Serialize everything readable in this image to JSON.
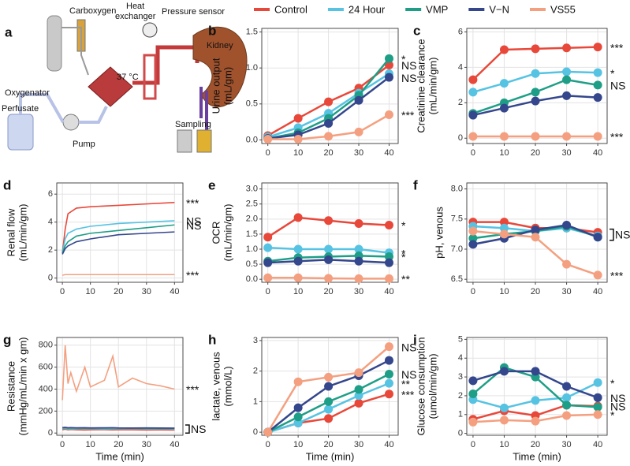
{
  "diagram": {
    "panel": "a",
    "carboxygen": "Carboxygen",
    "heat_exchanger": [
      "Heat",
      "exchanger"
    ],
    "pressure_sensor": "Pressure sensor",
    "kidney": "Kidney",
    "temperature": "37 °C",
    "oxygenator": "Oxygenator",
    "perfusate": "Perfusate",
    "pump": "Pump",
    "sampling": "Sampling"
  },
  "chart_data": [
    {
      "panel": "b",
      "type": "line",
      "markers": true,
      "ylabel": [
        "Urine output",
        "(mL/gm)"
      ],
      "x": [
        0,
        10,
        20,
        30,
        40
      ],
      "xlim": [
        -2,
        43
      ],
      "xticks": [
        0,
        10,
        20,
        30,
        40
      ],
      "ylim": [
        -0.05,
        1.55
      ],
      "yticks": [
        {
          "value": 0,
          "label": "0.0"
        },
        {
          "value": 0.5,
          "label": "0.5"
        },
        {
          "value": 1,
          "label": "1.0"
        },
        {
          "value": 1.5,
          "label": "1.5"
        }
      ],
      "series": [
        {
          "name": "Control",
          "color": "#e8483a",
          "values": [
            0.06,
            0.3,
            0.53,
            0.72,
            1.04
          ],
          "annotation": "NS"
        },
        {
          "name": "24 Hour",
          "color": "#56c3e3",
          "values": [
            0.04,
            0.17,
            0.37,
            0.65,
            0.92
          ]
        },
        {
          "name": "VMP",
          "color": "#1e9e86",
          "values": [
            0.02,
            0.1,
            0.3,
            0.62,
            1.13
          ],
          "annotation": "*"
        },
        {
          "name": "V−N",
          "color": "#34468c",
          "values": [
            0.02,
            0.07,
            0.23,
            0.55,
            0.87
          ],
          "annotation": "NS"
        },
        {
          "name": "VS55",
          "color": "#f4a080",
          "values": [
            0.01,
            0.01,
            0.05,
            0.11,
            0.35
          ],
          "annotation": "***"
        }
      ]
    },
    {
      "panel": "c",
      "type": "line",
      "markers": true,
      "ylabel": [
        "Creatinine clearance",
        "(mL/min/gm)"
      ],
      "x": [
        0,
        10,
        20,
        30,
        40
      ],
      "xlim": [
        -2,
        43
      ],
      "xticks": [
        0,
        10,
        20,
        30,
        40
      ],
      "ylim": [
        -0.3,
        6.2
      ],
      "yticks": [
        0,
        2,
        4,
        6
      ],
      "series": [
        {
          "name": "Control",
          "color": "#e8483a",
          "values": [
            3.3,
            5.0,
            5.05,
            5.1,
            5.15
          ],
          "annotation": "***"
        },
        {
          "name": "24 Hour",
          "color": "#56c3e3",
          "values": [
            2.6,
            3.1,
            3.65,
            3.75,
            3.7
          ],
          "annotation": "*"
        },
        {
          "name": "VMP",
          "color": "#1e9e86",
          "values": [
            1.4,
            2.0,
            2.6,
            3.3,
            3.0
          ],
          "annotation": "NS"
        },
        {
          "name": "V−N",
          "color": "#34468c",
          "values": [
            1.3,
            1.7,
            2.1,
            2.4,
            2.3
          ]
        },
        {
          "name": "VS55",
          "color": "#f4a080",
          "values": [
            0.1,
            0.1,
            0.1,
            0.1,
            0.1
          ],
          "annotation": "***"
        }
      ]
    },
    {
      "panel": "d",
      "type": "line",
      "markers": false,
      "ylabel": [
        "Renal flow",
        "(mL/min/gm)"
      ],
      "x": [
        0,
        1,
        2,
        5,
        10,
        20,
        30,
        40
      ],
      "xlim": [
        -2,
        43
      ],
      "xticks": [
        0,
        10,
        20,
        30,
        40
      ],
      "ylim": [
        -0.3,
        6.8
      ],
      "yticks": [
        0,
        2,
        4,
        6
      ],
      "series": [
        {
          "name": "Control",
          "color": "#e8483a",
          "values": [
            1.8,
            3.5,
            4.6,
            5.0,
            5.1,
            5.2,
            5.3,
            5.4
          ],
          "annotation": "***"
        },
        {
          "name": "24 Hour",
          "color": "#56c3e3",
          "values": [
            1.8,
            2.8,
            3.2,
            3.5,
            3.7,
            3.9,
            4.0,
            4.1
          ],
          "annotation": "NS"
        },
        {
          "name": "VMP",
          "color": "#1e9e86",
          "values": [
            1.8,
            2.3,
            2.6,
            3.0,
            3.2,
            3.4,
            3.6,
            3.8
          ],
          "annotation": "NS"
        },
        {
          "name": "V−N",
          "color": "#34468c",
          "values": [
            1.7,
            2.1,
            2.3,
            2.6,
            2.8,
            3.1,
            3.2,
            3.3
          ]
        },
        {
          "name": "VS55",
          "color": "#f4a080",
          "values": [
            0.2,
            0.25,
            0.25,
            0.25,
            0.25,
            0.25,
            0.25,
            0.25
          ],
          "annotation": "***"
        }
      ]
    },
    {
      "panel": "e",
      "type": "line",
      "markers": true,
      "ylabel": [
        "OCR",
        "(mL/min/gm)"
      ],
      "x": [
        0,
        10,
        20,
        30,
        40
      ],
      "xlim": [
        -2,
        43
      ],
      "xticks": [
        0,
        10,
        20,
        30,
        40
      ],
      "ylim": [
        -0.1,
        3.2
      ],
      "yticks": [
        {
          "value": 0,
          "label": "0.0"
        },
        {
          "value": 0.5,
          "label": "0.5"
        },
        {
          "value": 1,
          "label": "1.0"
        },
        {
          "value": 1.5,
          "label": "1.5"
        },
        {
          "value": 2,
          "label": "2.0"
        },
        {
          "value": 2.5,
          "label": "2.5"
        },
        {
          "value": 3,
          "label": "3.0"
        }
      ],
      "series": [
        {
          "name": "Control",
          "color": "#e8483a",
          "values": [
            1.4,
            2.05,
            1.95,
            1.85,
            1.8
          ],
          "annotation": "*"
        },
        {
          "name": "24 Hour",
          "color": "#56c3e3",
          "values": [
            1.05,
            1.0,
            1.0,
            1.0,
            0.88
          ],
          "annotation": "*"
        },
        {
          "name": "VMP",
          "color": "#1e9e86",
          "values": [
            0.6,
            0.72,
            0.75,
            0.78,
            0.75
          ],
          "annotation": "*"
        },
        {
          "name": "V−N",
          "color": "#34468c",
          "values": [
            0.55,
            0.6,
            0.65,
            0.6,
            0.55
          ]
        },
        {
          "name": "VS55",
          "color": "#f4a080",
          "values": [
            0.05,
            0.05,
            0.03,
            0.02,
            0.02
          ],
          "annotation": "**"
        }
      ]
    },
    {
      "panel": "f",
      "type": "line",
      "markers": true,
      "ylabel": [
        "pH, venous"
      ],
      "bracket_label": "NS",
      "x": [
        0,
        10,
        20,
        30,
        40
      ],
      "xlim": [
        -2,
        43
      ],
      "xticks": [
        0,
        10,
        20,
        30,
        40
      ],
      "ylim": [
        6.45,
        8.1
      ],
      "yticks": [
        {
          "value": 6.5,
          "label": "6.5"
        },
        {
          "value": 7,
          "label": "7.0"
        },
        {
          "value": 7.5,
          "label": "7.5"
        },
        {
          "value": 8,
          "label": "8.0"
        }
      ],
      "series": [
        {
          "name": "Control",
          "color": "#e8483a",
          "values": [
            7.45,
            7.45,
            7.35,
            7.35,
            7.28
          ]
        },
        {
          "name": "24 Hour",
          "color": "#56c3e3",
          "values": [
            7.38,
            7.35,
            7.3,
            7.35,
            7.22
          ]
        },
        {
          "name": "VMP",
          "color": "#1e9e86",
          "values": [
            7.18,
            7.25,
            7.3,
            7.38,
            7.2
          ]
        },
        {
          "name": "V−N",
          "color": "#34468c",
          "values": [
            7.08,
            7.18,
            7.32,
            7.4,
            7.2
          ]
        },
        {
          "name": "VS55",
          "color": "#f4a080",
          "values": [
            7.3,
            7.25,
            7.2,
            6.75,
            6.57
          ],
          "annotation": "***"
        }
      ]
    },
    {
      "panel": "g",
      "type": "line",
      "markers": false,
      "ylabel": [
        "Resistance",
        "(mmHg/mL/min x gm)"
      ],
      "xlabel": "Time (min)",
      "bracket_label": "NS",
      "x": [
        0,
        1,
        2,
        3,
        5,
        8,
        10,
        15,
        18,
        20,
        25,
        30,
        35,
        40
      ],
      "xlim": [
        -2,
        43
      ],
      "xticks": [
        0,
        10,
        20,
        30,
        40
      ],
      "ylim": [
        -20,
        870
      ],
      "yticks": [
        0,
        200,
        400,
        600,
        800
      ],
      "series": [
        {
          "name": "Control",
          "color": "#e8483a",
          "values": [
            30,
            35,
            30,
            32,
            30,
            28,
            30,
            31,
            29,
            30,
            30,
            28,
            29,
            28
          ]
        },
        {
          "name": "24 Hour",
          "color": "#56c3e3",
          "values": [
            40,
            42,
            38,
            40,
            39,
            41,
            40,
            38,
            39,
            40,
            41,
            39,
            40,
            38
          ]
        },
        {
          "name": "VMP",
          "color": "#1e9e86",
          "values": [
            45,
            48,
            44,
            46,
            45,
            43,
            44,
            45,
            46,
            44,
            43,
            44,
            42,
            42
          ]
        },
        {
          "name": "V−N",
          "color": "#34468c",
          "values": [
            50,
            52,
            49,
            50,
            48,
            49,
            47,
            48,
            49,
            47,
            46,
            47,
            46,
            45
          ]
        },
        {
          "name": "VS55",
          "color": "#f4a080",
          "values": [
            300,
            800,
            450,
            550,
            380,
            600,
            420,
            480,
            700,
            420,
            500,
            450,
            430,
            400
          ],
          "annotation": "***"
        }
      ]
    },
    {
      "panel": "h",
      "type": "line",
      "markers": true,
      "ylabel": [
        "lactate, venous",
        "(mmol/L)"
      ],
      "xlabel": "Time (min)",
      "x": [
        0,
        10,
        20,
        30,
        40
      ],
      "xlim": [
        -2,
        43
      ],
      "xticks": [
        0,
        10,
        20,
        30,
        40
      ],
      "ylim": [
        -0.1,
        3.1
      ],
      "yticks": [
        0,
        1,
        2,
        3
      ],
      "series": [
        {
          "name": "Control",
          "color": "#e8483a",
          "values": [
            0,
            0.3,
            0.45,
            0.95,
            1.25
          ],
          "annotation": "***"
        },
        {
          "name": "24 Hour",
          "color": "#56c3e3",
          "values": [
            0,
            0.3,
            0.75,
            1.2,
            1.6
          ],
          "annotation": "**"
        },
        {
          "name": "VMP",
          "color": "#1e9e86",
          "values": [
            0,
            0.5,
            1.0,
            1.4,
            1.9
          ],
          "annotation": "NS"
        },
        {
          "name": "V−N",
          "color": "#34468c",
          "values": [
            0,
            0.8,
            1.5,
            1.85,
            2.35
          ]
        },
        {
          "name": "VS55",
          "color": "#f4a080",
          "values": [
            0,
            1.65,
            1.8,
            1.95,
            2.8
          ],
          "annotation": "NS"
        }
      ]
    },
    {
      "panel": "i",
      "type": "line",
      "markers": true,
      "ylabel": [
        "Glucose consumption",
        "(umol/min/gm)"
      ],
      "xlabel": "Time (min)",
      "x": [
        0,
        10,
        20,
        30,
        40
      ],
      "xlim": [
        -2,
        43
      ],
      "xticks": [
        0,
        10,
        20,
        30,
        40
      ],
      "ylim": [
        -0.1,
        5.1
      ],
      "yticks": [
        0,
        1,
        2,
        3,
        4,
        5
      ],
      "series": [
        {
          "name": "Control",
          "color": "#e8483a",
          "values": [
            0.75,
            1.2,
            0.95,
            1.5,
            1.45
          ],
          "annotation": "NS"
        },
        {
          "name": "24 Hour",
          "color": "#56c3e3",
          "values": [
            1.8,
            1.35,
            1.75,
            1.9,
            2.7
          ],
          "annotation": "*"
        },
        {
          "name": "VMP",
          "color": "#1e9e86",
          "values": [
            2.1,
            3.5,
            3.0,
            1.5,
            1.4
          ]
        },
        {
          "name": "V−N",
          "color": "#34468c",
          "values": [
            2.8,
            3.3,
            3.3,
            2.5,
            1.9
          ],
          "annotation": "NS"
        },
        {
          "name": "VS55",
          "color": "#f4a080",
          "values": [
            0.6,
            0.7,
            0.65,
            0.95,
            1.0
          ],
          "annotation": "*"
        }
      ]
    }
  ]
}
